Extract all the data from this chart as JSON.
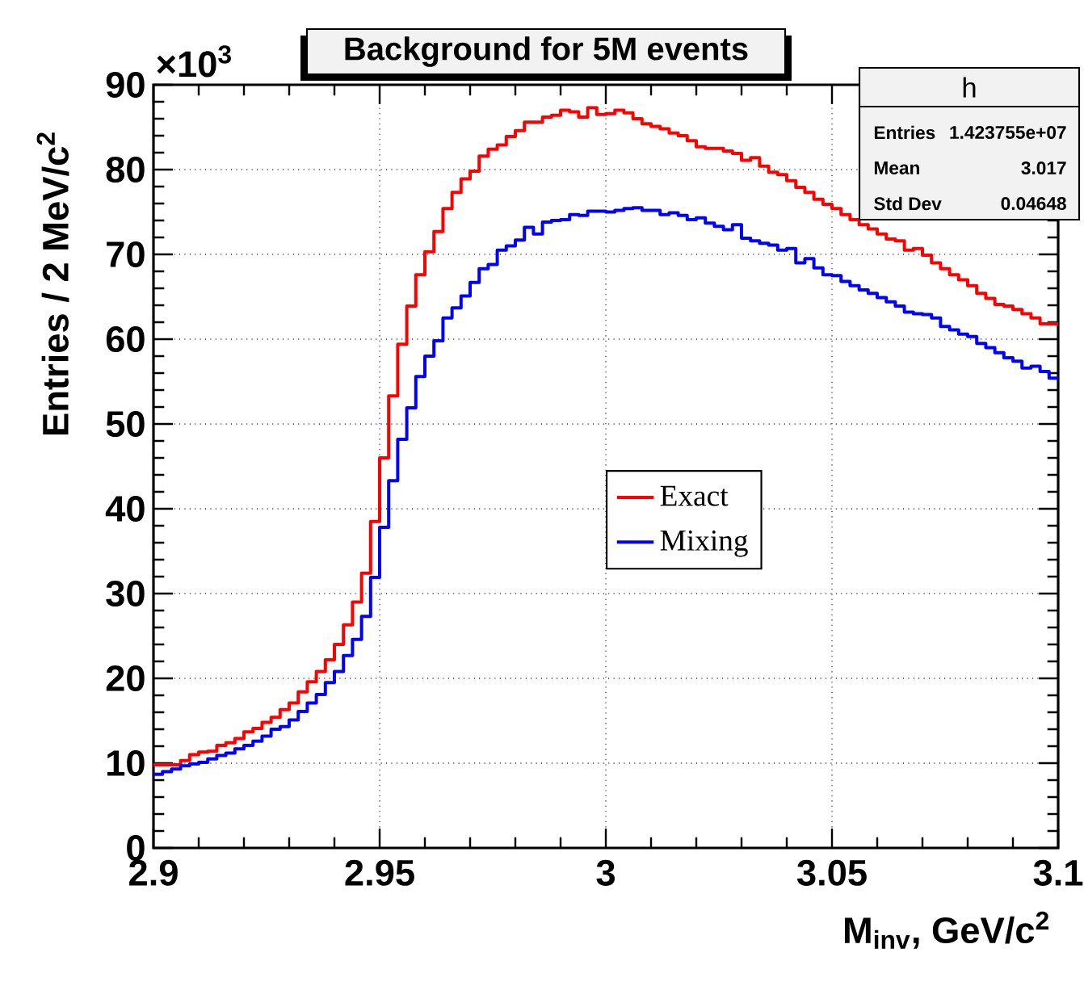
{
  "chart_data": {
    "type": "histogram",
    "title": "Background for 5M events",
    "xlabel": "M$_{inv}$, GeV/c$^{2}$",
    "ylabel": "Entries / 2 MeV/c$^{2}$",
    "annotations": [
      "×10$^{3}$",
      "h",
      "Entries",
      "1.423755e+07",
      "Mean",
      "3.017",
      "Std Dev",
      "0.04648"
    ],
    "bins": [
      2.9,
      2.902,
      2.904,
      2.906,
      2.908,
      2.91,
      2.912,
      2.914,
      2.916,
      2.918,
      2.92,
      2.922,
      2.924,
      2.926,
      2.928,
      2.93,
      2.932,
      2.934,
      2.936,
      2.938,
      2.94,
      2.942,
      2.944,
      2.946,
      2.948,
      2.95,
      2.952,
      2.954,
      2.956,
      2.958,
      2.96,
      2.962,
      2.964,
      2.966,
      2.968,
      2.97,
      2.972,
      2.974,
      2.976,
      2.978,
      2.98,
      2.982,
      2.984,
      2.986,
      2.988,
      2.99,
      2.992,
      2.994,
      2.996,
      2.998,
      3.0,
      3.002,
      3.004,
      3.006,
      3.008,
      3.01,
      3.012,
      3.014,
      3.016,
      3.018,
      3.02,
      3.022,
      3.024,
      3.026,
      3.028,
      3.03,
      3.032,
      3.034,
      3.036,
      3.038,
      3.04,
      3.042,
      3.044,
      3.046,
      3.048,
      3.05,
      3.052,
      3.054,
      3.056,
      3.058,
      3.06,
      3.062,
      3.064,
      3.066,
      3.068,
      3.07,
      3.072,
      3.074,
      3.076,
      3.078,
      3.08,
      3.082,
      3.084,
      3.086,
      3.088,
      3.09,
      3.092,
      3.094,
      3.096,
      3.098,
      3.1
    ],
    "series": [
      {
        "name": "Exact",
        "color": "#ff0000",
        "values": [
          9.8,
          9.8,
          9.8,
          10.3,
          11.0,
          11.3,
          11.4,
          12.1,
          12.4,
          12.9,
          13.7,
          14.1,
          14.8,
          15.4,
          16.3,
          17.1,
          18.4,
          19.6,
          20.8,
          22.2,
          24.0,
          26.3,
          29.0,
          32.4,
          38.5,
          46.0,
          53.3,
          59.4,
          63.9,
          67.6,
          70.3,
          72.7,
          75.4,
          77.3,
          78.9,
          79.8,
          81.6,
          82.4,
          82.9,
          83.9,
          84.6,
          85.6,
          85.6,
          86.2,
          86.4,
          87.0,
          86.8,
          86.2,
          87.3,
          86.5,
          86.6,
          87.0,
          86.7,
          86.0,
          85.4,
          85.1,
          84.8,
          84.3,
          84.0,
          83.4,
          82.7,
          82.5,
          82.5,
          82.2,
          81.9,
          81.1,
          81.4,
          80.4,
          79.7,
          79.4,
          78.7,
          77.9,
          77.3,
          76.5,
          75.9,
          75.4,
          74.7,
          74.1,
          73.5,
          73.0,
          72.4,
          71.8,
          71.6,
          70.5,
          70.7,
          69.9,
          69.0,
          68.3,
          67.6,
          67.0,
          66.3,
          65.4,
          64.8,
          64.1,
          63.9,
          63.5,
          63.0,
          62.5,
          61.8,
          61.8
        ]
      },
      {
        "name": "Mixing",
        "color": "#0000ff",
        "values": [
          8.7,
          9.0,
          9.3,
          9.7,
          9.9,
          10.1,
          10.5,
          10.9,
          11.2,
          11.7,
          12.1,
          12.6,
          13.2,
          14.0,
          14.3,
          15.1,
          16.1,
          17.1,
          18.1,
          19.5,
          20.8,
          22.7,
          24.6,
          27.3,
          31.9,
          37.8,
          43.3,
          48.2,
          51.9,
          55.6,
          58.0,
          59.8,
          62.5,
          63.7,
          65.1,
          66.7,
          68.3,
          68.8,
          70.5,
          71.0,
          71.7,
          73.2,
          72.4,
          73.8,
          74.0,
          74.1,
          74.7,
          74.6,
          75.1,
          75.1,
          75.0,
          75.2,
          75.4,
          75.5,
          75.2,
          75.2,
          74.7,
          74.9,
          74.6,
          74.1,
          74.3,
          73.7,
          73.3,
          72.9,
          73.5,
          71.9,
          71.6,
          71.3,
          71.1,
          70.5,
          70.7,
          69.0,
          69.5,
          68.4,
          67.6,
          67.5,
          66.8,
          66.3,
          65.8,
          65.4,
          64.9,
          64.4,
          63.9,
          63.2,
          63.0,
          62.9,
          62.5,
          61.5,
          61.1,
          60.6,
          60.3,
          59.5,
          59.0,
          58.4,
          57.8,
          57.4,
          56.6,
          56.8,
          56.2,
          55.4
        ]
      }
    ],
    "xlim": [
      2.9,
      3.1
    ],
    "ylim": [
      0,
      90
    ],
    "xticks": [
      2.9,
      2.95,
      3,
      3.05,
      3.1
    ],
    "yticks": [
      0,
      10,
      20,
      30,
      40,
      50,
      60,
      70,
      80,
      90
    ],
    "grid": true,
    "legend": "center"
  }
}
